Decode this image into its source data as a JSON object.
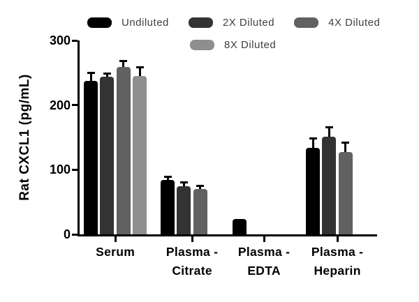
{
  "figure": {
    "background": "#ffffff"
  },
  "legend": {
    "items": [
      {
        "label": "Undiluted",
        "color": "#000000"
      },
      {
        "label": "2X Diluted",
        "color": "#333333"
      },
      {
        "label": "4X Diluted",
        "color": "#616161"
      },
      {
        "label": "8X Diluted",
        "color": "#8e8e8e"
      }
    ]
  },
  "chart_data": {
    "type": "bar",
    "title": "",
    "xlabel": "",
    "ylabel": "Rat CXCL1 (pg/mL)",
    "ylim": [
      0,
      300
    ],
    "yticks": [
      0,
      100,
      200,
      300
    ],
    "grid": false,
    "legend_position": "top",
    "error_bars": "upper only, black stem with cap, mean + SD",
    "bar_style": "grouped, rounded top corners",
    "categories": [
      "Serum",
      "Plasma - Citrate",
      "Plasma - EDTA",
      "Plasma - Heparin"
    ],
    "category_tick_labels": [
      "Serum",
      "Plasma -\nCitrate",
      "Plasma -\nEDTA",
      "Plasma -\nHeparin"
    ],
    "series": [
      {
        "name": "Undiluted",
        "color": "#000000",
        "values": [
          237,
          84,
          24,
          134
        ],
        "errors": [
          14,
          7,
          0,
          16
        ]
      },
      {
        "name": "2X Diluted",
        "color": "#333333",
        "values": [
          244,
          74,
          null,
          151
        ],
        "errors": [
          6,
          8,
          null,
          16
        ]
      },
      {
        "name": "4X Diluted",
        "color": "#616161",
        "values": [
          259,
          70,
          null,
          127
        ],
        "errors": [
          11,
          7,
          null,
          17
        ]
      },
      {
        "name": "8X Diluted",
        "color": "#8e8e8e",
        "values": [
          245,
          null,
          null,
          null
        ],
        "errors": [
          15,
          null,
          null,
          null
        ]
      }
    ]
  }
}
